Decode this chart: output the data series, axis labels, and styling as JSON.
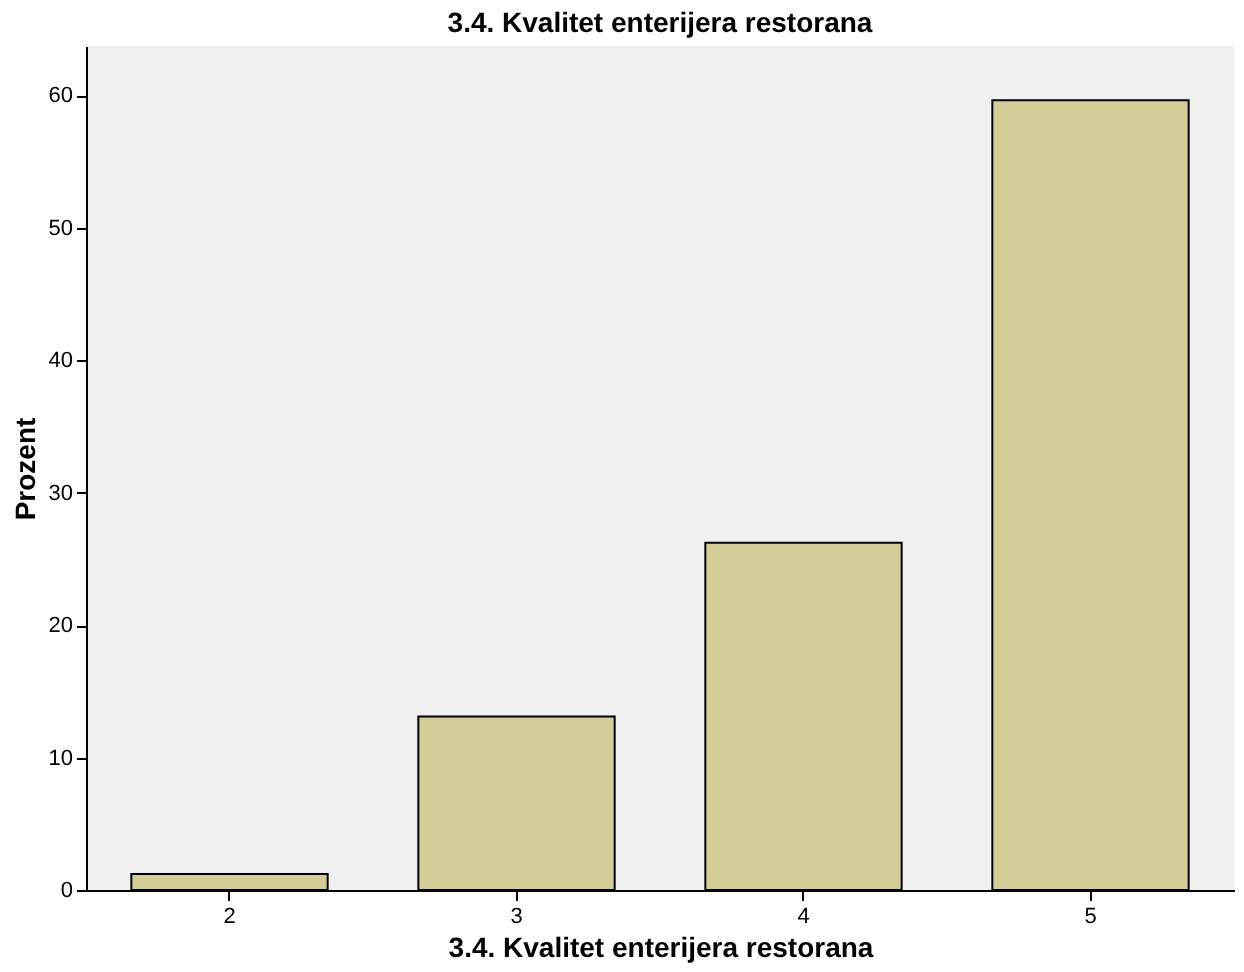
{
  "chart_data": {
    "type": "bar",
    "title": "3.4. Kvalitet enterijera restorana",
    "xlabel": "3.4. Kvalitet enterijera restorana",
    "ylabel": "Prozent",
    "categories": [
      "2",
      "3",
      "4",
      "5"
    ],
    "values": [
      1.2,
      13.1,
      26.2,
      59.6
    ],
    "color": "#d3ce97",
    "ylim": [
      0,
      63.7
    ],
    "yticks": [
      0,
      10,
      20,
      30,
      40,
      50,
      60
    ],
    "grid": false
  }
}
